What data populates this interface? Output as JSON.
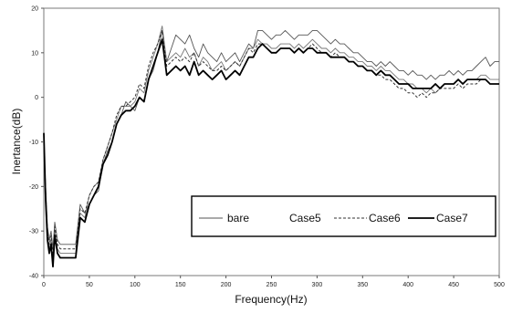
{
  "chart_data": {
    "type": "line",
    "xlabel": "Frequency(Hz)",
    "ylabel": "Inertance(dB)",
    "xlim": [
      0,
      500
    ],
    "ylim": [
      -40,
      20
    ],
    "xticks": [
      0,
      50,
      100,
      150,
      200,
      250,
      300,
      350,
      400,
      450,
      500
    ],
    "yticks": [
      -40,
      -30,
      -20,
      -10,
      0,
      10,
      20
    ],
    "grid": false,
    "legend_position": "bottom-right",
    "series": [
      {
        "name": "bare",
        "color": "#555555",
        "dash": "solid",
        "width": 0.9,
        "x": [
          0,
          2,
          4,
          6,
          8,
          10,
          12,
          15,
          18,
          20,
          25,
          30,
          35,
          40,
          45,
          50,
          55,
          60,
          65,
          70,
          75,
          80,
          85,
          90,
          95,
          100,
          105,
          110,
          115,
          120,
          125,
          130,
          135,
          140,
          145,
          150,
          155,
          160,
          165,
          170,
          175,
          180,
          185,
          190,
          195,
          200,
          205,
          210,
          215,
          220,
          225,
          230,
          235,
          240,
          245,
          250,
          255,
          260,
          265,
          270,
          275,
          280,
          285,
          290,
          295,
          300,
          305,
          310,
          315,
          320,
          325,
          330,
          335,
          340,
          345,
          350,
          355,
          360,
          365,
          370,
          375,
          380,
          385,
          390,
          395,
          400,
          405,
          410,
          415,
          420,
          425,
          430,
          435,
          440,
          445,
          450,
          455,
          460,
          465,
          470,
          475,
          480,
          485,
          490,
          495,
          500
        ],
        "y": [
          -11,
          -20,
          -29,
          -32,
          -30,
          -34,
          -28,
          -32,
          -33,
          -33,
          -33,
          -33,
          -33,
          -24,
          -26,
          -24,
          -22,
          -21,
          -15,
          -12,
          -10,
          -6,
          -4,
          -1,
          -2,
          -3,
          0,
          -1,
          4,
          6,
          10,
          15,
          8,
          11,
          14,
          13,
          12,
          14,
          11,
          9,
          12,
          10,
          9,
          8,
          10,
          8,
          9,
          10,
          8,
          10,
          12,
          11,
          15,
          15,
          14,
          13,
          14,
          14,
          15,
          14,
          13,
          14,
          14,
          14,
          15,
          15,
          14,
          13,
          12,
          13,
          12,
          12,
          11,
          10,
          10,
          9,
          8,
          8,
          7,
          8,
          7,
          8,
          7,
          6,
          6,
          5,
          6,
          5,
          5,
          4,
          5,
          4,
          5,
          5,
          6,
          5,
          6,
          5,
          6,
          6,
          7,
          8,
          9,
          7,
          8,
          8
        ]
      },
      {
        "name": "Case5",
        "color": "#777777",
        "dash": "solid",
        "width": 0.9,
        "x": [
          0,
          2,
          4,
          6,
          8,
          10,
          12,
          15,
          18,
          20,
          25,
          30,
          35,
          40,
          45,
          50,
          55,
          60,
          65,
          70,
          75,
          80,
          85,
          90,
          95,
          100,
          105,
          110,
          115,
          120,
          125,
          130,
          135,
          140,
          145,
          150,
          155,
          160,
          165,
          170,
          175,
          180,
          185,
          190,
          195,
          200,
          205,
          210,
          215,
          220,
          225,
          230,
          235,
          240,
          245,
          250,
          255,
          260,
          265,
          270,
          275,
          280,
          285,
          290,
          295,
          300,
          305,
          310,
          315,
          320,
          325,
          330,
          335,
          340,
          345,
          350,
          355,
          360,
          365,
          370,
          375,
          380,
          385,
          390,
          395,
          400,
          405,
          410,
          415,
          420,
          425,
          430,
          435,
          440,
          445,
          450,
          455,
          460,
          465,
          470,
          475,
          480,
          485,
          490,
          495,
          500
        ],
        "y": [
          -9,
          -22,
          -31,
          -34,
          -32,
          -37,
          -30,
          -34,
          -35,
          -35,
          -35,
          -35,
          -35,
          -26,
          -27,
          -22,
          -20,
          -19,
          -14,
          -11,
          -8,
          -5,
          -2,
          -2,
          -2,
          -1,
          2,
          1,
          6,
          9,
          12,
          16,
          8,
          9,
          10,
          9,
          11,
          9,
          10,
          7,
          9,
          8,
          6,
          7,
          8,
          6,
          7,
          8,
          7,
          9,
          11,
          11,
          13,
          12,
          12,
          11,
          11,
          12,
          12,
          12,
          11,
          12,
          11,
          12,
          13,
          12,
          11,
          11,
          10,
          11,
          10,
          10,
          9,
          9,
          8,
          8,
          7,
          7,
          6,
          7,
          6,
          6,
          5,
          4,
          4,
          3,
          3,
          2,
          2,
          1,
          2,
          1,
          2,
          3,
          3,
          3,
          4,
          3,
          4,
          4,
          4,
          5,
          5,
          4,
          4,
          4
        ]
      },
      {
        "name": "Case6",
        "color": "#333333",
        "dash": "3,2",
        "width": 1.0,
        "x": [
          0,
          2,
          4,
          6,
          8,
          10,
          12,
          15,
          18,
          20,
          25,
          30,
          35,
          40,
          45,
          50,
          55,
          60,
          65,
          70,
          75,
          80,
          85,
          90,
          95,
          100,
          105,
          110,
          115,
          120,
          125,
          130,
          135,
          140,
          145,
          150,
          155,
          160,
          165,
          170,
          175,
          180,
          185,
          190,
          195,
          200,
          205,
          210,
          215,
          220,
          225,
          230,
          235,
          240,
          245,
          250,
          255,
          260,
          265,
          270,
          275,
          280,
          285,
          290,
          295,
          300,
          305,
          310,
          315,
          320,
          325,
          330,
          335,
          340,
          345,
          350,
          355,
          360,
          365,
          370,
          375,
          380,
          385,
          390,
          395,
          400,
          405,
          410,
          415,
          420,
          425,
          430,
          435,
          440,
          445,
          450,
          455,
          460,
          465,
          470,
          475,
          480,
          485,
          490,
          495,
          500
        ],
        "y": [
          -10,
          -21,
          -30,
          -33,
          -31,
          -36,
          -29,
          -33,
          -34,
          -34,
          -34,
          -34,
          -34,
          -25,
          -26,
          -22,
          -20,
          -19,
          -14,
          -11,
          -8,
          -4,
          -2,
          -2,
          -1,
          0,
          3,
          2,
          7,
          10,
          12,
          15,
          7,
          8,
          9,
          8,
          9,
          8,
          10,
          7,
          8,
          7,
          6,
          6,
          7,
          6,
          7,
          8,
          7,
          9,
          11,
          10,
          12,
          12,
          11,
          10,
          10,
          11,
          11,
          11,
          10,
          11,
          10,
          11,
          12,
          11,
          10,
          10,
          9,
          10,
          9,
          9,
          8,
          8,
          7,
          7,
          6,
          6,
          5,
          5,
          4,
          4,
          3,
          2,
          2,
          1,
          1,
          0,
          1,
          0,
          1,
          1,
          2,
          2,
          2,
          2,
          3,
          2,
          3,
          3,
          3,
          4,
          4,
          3,
          3,
          3
        ]
      },
      {
        "name": "Case7",
        "color": "#000000",
        "dash": "solid",
        "width": 1.8,
        "x": [
          0,
          2,
          4,
          6,
          8,
          10,
          12,
          15,
          18,
          20,
          25,
          30,
          35,
          40,
          45,
          50,
          55,
          60,
          65,
          70,
          75,
          80,
          85,
          90,
          95,
          100,
          105,
          110,
          115,
          120,
          125,
          130,
          135,
          140,
          145,
          150,
          155,
          160,
          165,
          170,
          175,
          180,
          185,
          190,
          195,
          200,
          205,
          210,
          215,
          220,
          225,
          230,
          235,
          240,
          245,
          250,
          255,
          260,
          265,
          270,
          275,
          280,
          285,
          290,
          295,
          300,
          305,
          310,
          315,
          320,
          325,
          330,
          335,
          340,
          345,
          350,
          355,
          360,
          365,
          370,
          375,
          380,
          385,
          390,
          395,
          400,
          405,
          410,
          415,
          420,
          425,
          430,
          435,
          440,
          445,
          450,
          455,
          460,
          465,
          470,
          475,
          480,
          485,
          490,
          495,
          500
        ],
        "y": [
          -8,
          -23,
          -32,
          -35,
          -33,
          -38,
          -31,
          -35,
          -36,
          -36,
          -36,
          -36,
          -36,
          -27,
          -28,
          -24,
          -22,
          -20,
          -15,
          -13,
          -10,
          -6,
          -4,
          -3,
          -3,
          -2,
          0,
          -1,
          4,
          7,
          10,
          13,
          5,
          6,
          7,
          6,
          7,
          5,
          8,
          5,
          6,
          5,
          4,
          5,
          6,
          4,
          5,
          6,
          5,
          7,
          9,
          9,
          11,
          12,
          11,
          10,
          10,
          11,
          11,
          11,
          10,
          11,
          10,
          11,
          11,
          10,
          10,
          10,
          9,
          9,
          9,
          9,
          8,
          8,
          7,
          7,
          6,
          6,
          5,
          6,
          5,
          5,
          4,
          3,
          3,
          3,
          2,
          2,
          2,
          2,
          2,
          3,
          2,
          3,
          3,
          3,
          4,
          3,
          4,
          4,
          4,
          4,
          4,
          3,
          3,
          3
        ]
      }
    ]
  }
}
